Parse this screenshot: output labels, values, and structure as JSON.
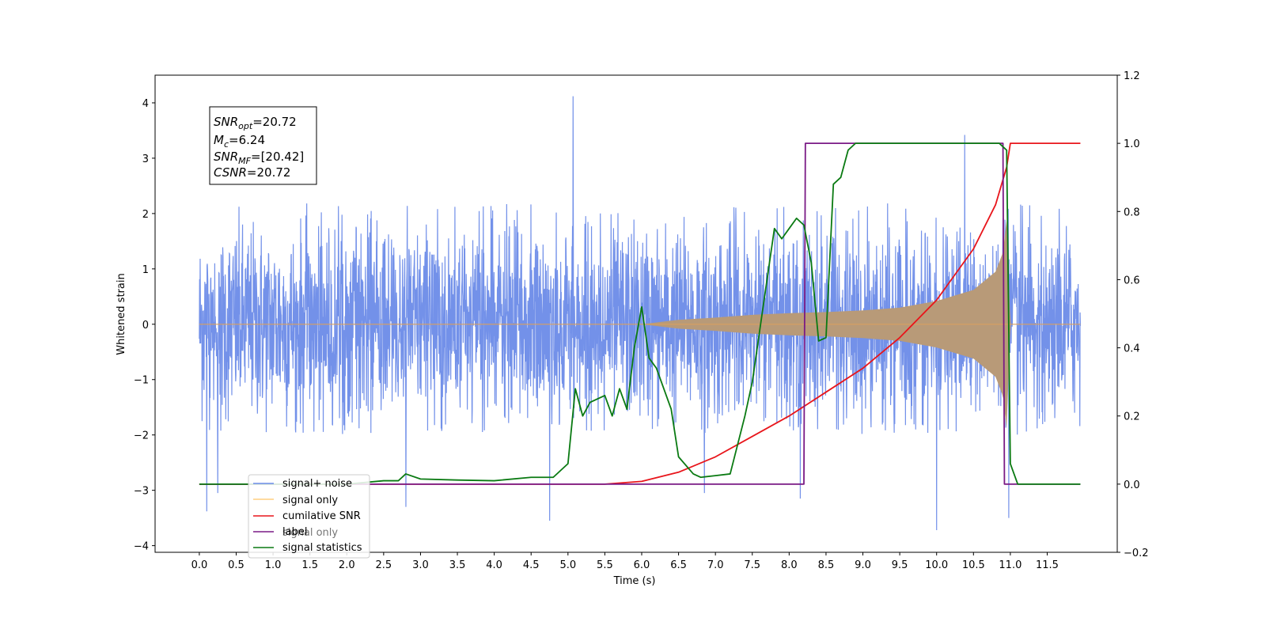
{
  "chart_data": {
    "type": "line",
    "xlabel": "Time (s)",
    "ylabel": "Whitened strain",
    "xlim": [
      -0.6,
      12.45
    ],
    "ylim": [
      -4.12,
      4.5
    ],
    "y2lim": [
      -0.2,
      1.2
    ],
    "x_ticks": [
      "0.0",
      "0.5",
      "1.0",
      "1.5",
      "2.0",
      "2.5",
      "3.0",
      "3.5",
      "4.0",
      "4.5",
      "5.0",
      "5.5",
      "6.0",
      "6.5",
      "7.0",
      "7.5",
      "8.0",
      "8.5",
      "9.0",
      "9.5",
      "10.0",
      "10.5",
      "11.0",
      "11.5"
    ],
    "x_tick_values": [
      0,
      0.5,
      1,
      1.5,
      2,
      2.5,
      3,
      3.5,
      4,
      4.5,
      5,
      5.5,
      6,
      6.5,
      7,
      7.5,
      8,
      8.5,
      9,
      9.5,
      10,
      10.5,
      11,
      11.5
    ],
    "y_ticks": [
      "−4",
      "−3",
      "−2",
      "−1",
      "0",
      "1",
      "2",
      "3",
      "4"
    ],
    "y_tick_values": [
      -4,
      -3,
      -2,
      -1,
      0,
      1,
      2,
      3,
      4
    ],
    "y2_ticks": [
      "−0.2",
      "0.0",
      "0.2",
      "0.4",
      "0.6",
      "0.8",
      "1.0",
      "1.2"
    ],
    "y2_tick_values": [
      -0.2,
      0,
      0.2,
      0.4,
      0.6,
      0.8,
      1.0,
      1.2
    ],
    "annotation": {
      "line1_sym": "SNR",
      "line1_sub": "opt",
      "line1_val": "=20.72",
      "line2_sym": "M",
      "line2_sub": "c",
      "line2_val": "=6.24",
      "line3_sym": "SNR",
      "line3_sub": "MF",
      "line3_val": "=[20.42]",
      "line4_sym": "CSNR",
      "line4_val": "=20.72"
    },
    "legend": {
      "position": "lower-left",
      "items": [
        "signal+ noise",
        "signal only",
        "cumilative SNR",
        "label",
        "signal statistics"
      ],
      "hidden_items": [
        "signal only"
      ]
    },
    "series": [
      {
        "name": "signal+ noise",
        "axis": "left",
        "color": "#6b8be8",
        "kind": "noise",
        "x_range": [
          0,
          11.95
        ],
        "typical_envelope": [
          -2.0,
          2.2
        ],
        "peaks": [
          [
            5.07,
            4.12
          ],
          [
            10.38,
            3.42
          ],
          [
            0.1,
            -3.38
          ],
          [
            0.25,
            -3.05
          ],
          [
            2.8,
            -3.3
          ],
          [
            4.75,
            -3.55
          ],
          [
            10.0,
            -3.72
          ],
          [
            10.98,
            -3.5
          ],
          [
            6.85,
            -3.05
          ],
          [
            8.15,
            -3.15
          ]
        ]
      },
      {
        "name": "signal only",
        "axis": "left",
        "color": "#d8a060",
        "kind": "chirp",
        "x_range": [
          0,
          11.95
        ],
        "envelope": [
          [
            0,
            0.0
          ],
          [
            6.0,
            0.0
          ],
          [
            6.5,
            0.08
          ],
          [
            7.0,
            0.12
          ],
          [
            7.5,
            0.17
          ],
          [
            8.0,
            0.2
          ],
          [
            8.5,
            0.22
          ],
          [
            9.0,
            0.25
          ],
          [
            9.5,
            0.3
          ],
          [
            10.0,
            0.42
          ],
          [
            10.5,
            0.62
          ],
          [
            10.8,
            0.95
          ],
          [
            10.9,
            1.3
          ],
          [
            10.95,
            1.9
          ],
          [
            11.0,
            0.0
          ],
          [
            11.95,
            0.0
          ]
        ]
      },
      {
        "name": "cumilative SNR",
        "axis": "right",
        "color": "#e8151b",
        "x": [
          0,
          5.5,
          6.0,
          6.5,
          7.0,
          7.5,
          8.0,
          8.5,
          9.0,
          9.5,
          10.0,
          10.5,
          10.8,
          10.95,
          11.0,
          11.95
        ],
        "y": [
          0,
          0,
          0.008,
          0.035,
          0.08,
          0.14,
          0.2,
          0.27,
          0.34,
          0.43,
          0.54,
          0.69,
          0.82,
          0.93,
          1.0,
          1.0
        ]
      },
      {
        "name": "label",
        "axis": "right",
        "color": "#7a1a85",
        "x": [
          0,
          8.2,
          8.22,
          10.9,
          10.92,
          11.95
        ],
        "y": [
          0,
          0,
          1.0,
          1.0,
          0,
          0
        ]
      },
      {
        "name": "signal statistics",
        "axis": "right",
        "color": "#0a7a12",
        "x": [
          0,
          2.0,
          2.5,
          2.7,
          2.8,
          3.0,
          3.5,
          4.0,
          4.5,
          4.8,
          5.0,
          5.1,
          5.2,
          5.3,
          5.5,
          5.6,
          5.7,
          5.8,
          5.9,
          6.0,
          6.1,
          6.2,
          6.4,
          6.5,
          6.7,
          6.8,
          7.0,
          7.2,
          7.4,
          7.5,
          7.7,
          7.8,
          7.9,
          8.0,
          8.1,
          8.2,
          8.3,
          8.4,
          8.5,
          8.6,
          8.7,
          8.8,
          8.9,
          9.0,
          9.5,
          10.0,
          10.5,
          10.85,
          10.95,
          11.0,
          11.1,
          11.95
        ],
        "y": [
          0,
          0,
          0.01,
          0.01,
          0.03,
          0.015,
          0.012,
          0.01,
          0.02,
          0.02,
          0.06,
          0.28,
          0.2,
          0.24,
          0.26,
          0.2,
          0.28,
          0.22,
          0.4,
          0.52,
          0.37,
          0.34,
          0.22,
          0.08,
          0.03,
          0.02,
          0.025,
          0.03,
          0.2,
          0.3,
          0.6,
          0.75,
          0.72,
          0.75,
          0.78,
          0.76,
          0.65,
          0.42,
          0.43,
          0.88,
          0.9,
          0.98,
          1.0,
          1.0,
          1.0,
          1.0,
          1.0,
          1.0,
          0.98,
          0.06,
          0.0,
          0.0
        ]
      }
    ]
  }
}
